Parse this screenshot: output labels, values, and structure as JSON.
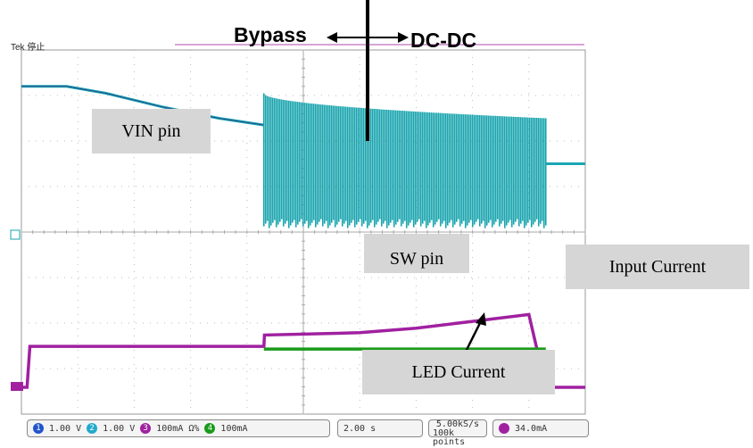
{
  "chart_data": {
    "type": "line",
    "title": "",
    "xlabel": "",
    "ylabel": "",
    "top_labels": {
      "left": "Bypass",
      "right": "DC-DC"
    },
    "scope_tag": "Tek 停止",
    "series": [
      {
        "name": "VIN pin",
        "color": "#1aa6b5",
        "x": [
          0,
          0.8,
          1.5,
          2.5,
          3.5,
          4.3,
          5,
          6,
          7,
          8,
          9,
          9.3,
          10
        ],
        "y": [
          3.2,
          3.2,
          3.05,
          2.75,
          2.5,
          2.35,
          3.0,
          2.7,
          2.55,
          2.5,
          2.5,
          1.5,
          1.5
        ]
      },
      {
        "name": "Input Current",
        "color": "#a020a0",
        "x": [
          0,
          0.1,
          0.15,
          4.3,
          4.31,
          6,
          7,
          8,
          9,
          9.3,
          10
        ],
        "y": [
          0,
          0,
          0.9,
          0.9,
          1.15,
          1.2,
          1.3,
          1.45,
          1.6,
          0,
          0
        ]
      },
      {
        "name": "LED Current",
        "color": "#1a9a1a",
        "x": [
          4.3,
          9.3
        ],
        "y": [
          0.9,
          0.9
        ]
      }
    ],
    "labels": {
      "vin": "VIN pin",
      "sw": "SW pin",
      "input": "Input Current",
      "led": "LED Current"
    },
    "status_bar": {
      "ch1": "1",
      "ch1_scale": "1.00 V",
      "ch2": "2",
      "ch2_scale": "1.00 V",
      "ch3": "3",
      "ch3_scale": "100mA Ω%",
      "ch4": "4",
      "ch4_scale": "100mA",
      "timebase": "2.00 s",
      "rate": "5.00kS/s",
      "points": "100k points",
      "trigger": "34.0mA"
    },
    "grid": true
  }
}
